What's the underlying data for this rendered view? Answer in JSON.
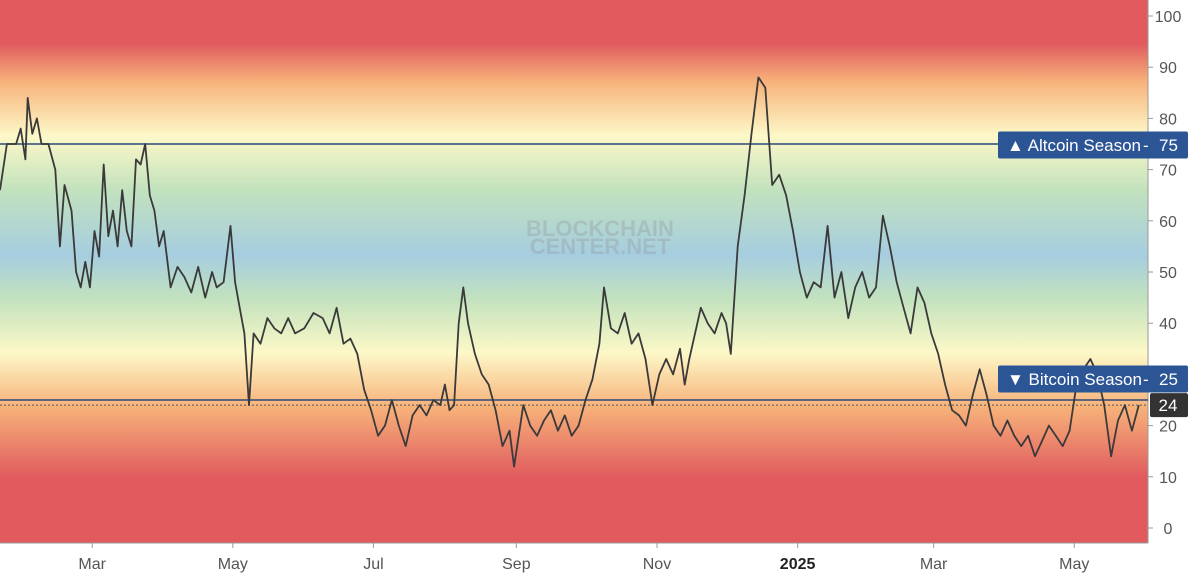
{
  "watermark": {
    "line1": "BLOCKCHAIN",
    "line2": "CENTER.NET"
  },
  "markers": {
    "altcoin_label": "▲ Altcoin Season",
    "altcoin_value": "75",
    "bitcoin_label": "▼ Bitcoin Season",
    "bitcoin_value": "25",
    "current_value": "24"
  },
  "colors": {
    "line": "#3a3a3a",
    "threshold_line": "#2c4a78",
    "label_bg": "#2c5596",
    "current_bg": "#333333",
    "band_red": "#e05a5e",
    "band_orange": "#f7b27a",
    "band_yellow": "#fdf8c8",
    "band_green": "#c2e2be",
    "band_blue": "#a6cde0"
  },
  "chart_data": {
    "type": "line",
    "title": "",
    "xlabel": "",
    "ylabel": "",
    "ylim": [
      0,
      100
    ],
    "y_ticks": [
      "0",
      "10",
      "20",
      "30",
      "40",
      "50",
      "60",
      "70",
      "80",
      "90",
      "100"
    ],
    "x_ticks": [
      {
        "label": "Mar",
        "bold": false
      },
      {
        "label": "May",
        "bold": false
      },
      {
        "label": "Jul",
        "bold": false
      },
      {
        "label": "Sep",
        "bold": false
      },
      {
        "label": "Nov",
        "bold": false
      },
      {
        "label": "2025",
        "bold": true
      },
      {
        "label": "Mar",
        "bold": false
      },
      {
        "label": "May",
        "bold": false
      }
    ],
    "x_tick_dates": [
      "2024-03-01",
      "2024-05-01",
      "2024-07-01",
      "2024-09-01",
      "2024-11-01",
      "2025-01-01",
      "2025-03-01",
      "2025-05-01"
    ],
    "x_range": [
      "2024-01-21",
      "2025-06-02"
    ],
    "thresholds": [
      75,
      25
    ],
    "current": 24,
    "grid": false,
    "legend": "none",
    "series": [
      {
        "points": [
          [
            "2024-01-21",
            66
          ],
          [
            "2024-01-24",
            75
          ],
          [
            "2024-01-28",
            75
          ],
          [
            "2024-01-30",
            78
          ],
          [
            "2024-02-01",
            72
          ],
          [
            "2024-02-02",
            84
          ],
          [
            "2024-02-04",
            77
          ],
          [
            "2024-02-06",
            80
          ],
          [
            "2024-02-08",
            75
          ],
          [
            "2024-02-11",
            75
          ],
          [
            "2024-02-14",
            70
          ],
          [
            "2024-02-16",
            55
          ],
          [
            "2024-02-18",
            67
          ],
          [
            "2024-02-21",
            62
          ],
          [
            "2024-02-23",
            50
          ],
          [
            "2024-02-25",
            47
          ],
          [
            "2024-02-27",
            52
          ],
          [
            "2024-02-29",
            47
          ],
          [
            "2024-03-02",
            58
          ],
          [
            "2024-03-04",
            53
          ],
          [
            "2024-03-06",
            71
          ],
          [
            "2024-03-08",
            57
          ],
          [
            "2024-03-10",
            62
          ],
          [
            "2024-03-12",
            55
          ],
          [
            "2024-03-14",
            66
          ],
          [
            "2024-03-16",
            58
          ],
          [
            "2024-03-18",
            55
          ],
          [
            "2024-03-20",
            72
          ],
          [
            "2024-03-22",
            71
          ],
          [
            "2024-03-24",
            75
          ],
          [
            "2024-03-26",
            65
          ],
          [
            "2024-03-28",
            62
          ],
          [
            "2024-03-30",
            55
          ],
          [
            "2024-04-01",
            58
          ],
          [
            "2024-04-04",
            47
          ],
          [
            "2024-04-07",
            51
          ],
          [
            "2024-04-10",
            49
          ],
          [
            "2024-04-13",
            46
          ],
          [
            "2024-04-16",
            51
          ],
          [
            "2024-04-19",
            45
          ],
          [
            "2024-04-22",
            50
          ],
          [
            "2024-04-24",
            47
          ],
          [
            "2024-04-27",
            48
          ],
          [
            "2024-04-30",
            59
          ],
          [
            "2024-05-02",
            48
          ],
          [
            "2024-05-04",
            43
          ],
          [
            "2024-05-06",
            38
          ],
          [
            "2024-05-08",
            24
          ],
          [
            "2024-05-10",
            38
          ],
          [
            "2024-05-13",
            36
          ],
          [
            "2024-05-16",
            41
          ],
          [
            "2024-05-19",
            39
          ],
          [
            "2024-05-22",
            38
          ],
          [
            "2024-05-25",
            41
          ],
          [
            "2024-05-28",
            38
          ],
          [
            "2024-06-01",
            39
          ],
          [
            "2024-06-05",
            42
          ],
          [
            "2024-06-09",
            41
          ],
          [
            "2024-06-12",
            38
          ],
          [
            "2024-06-15",
            43
          ],
          [
            "2024-06-18",
            36
          ],
          [
            "2024-06-21",
            37
          ],
          [
            "2024-06-24",
            34
          ],
          [
            "2024-06-27",
            27
          ],
          [
            "2024-06-30",
            23
          ],
          [
            "2024-07-03",
            18
          ],
          [
            "2024-07-06",
            20
          ],
          [
            "2024-07-09",
            25
          ],
          [
            "2024-07-12",
            20
          ],
          [
            "2024-07-15",
            16
          ],
          [
            "2024-07-18",
            22
          ],
          [
            "2024-07-21",
            24
          ],
          [
            "2024-07-24",
            22
          ],
          [
            "2024-07-27",
            25
          ],
          [
            "2024-07-30",
            24
          ],
          [
            "2024-08-01",
            28
          ],
          [
            "2024-08-03",
            23
          ],
          [
            "2024-08-05",
            24
          ],
          [
            "2024-08-07",
            40
          ],
          [
            "2024-08-09",
            47
          ],
          [
            "2024-08-11",
            40
          ],
          [
            "2024-08-14",
            34
          ],
          [
            "2024-08-17",
            30
          ],
          [
            "2024-08-20",
            28
          ],
          [
            "2024-08-23",
            23
          ],
          [
            "2024-08-26",
            16
          ],
          [
            "2024-08-29",
            19
          ],
          [
            "2024-08-31",
            12
          ],
          [
            "2024-09-02",
            18
          ],
          [
            "2024-09-04",
            24
          ],
          [
            "2024-09-07",
            20
          ],
          [
            "2024-09-10",
            18
          ],
          [
            "2024-09-13",
            21
          ],
          [
            "2024-09-16",
            23
          ],
          [
            "2024-09-19",
            19
          ],
          [
            "2024-09-22",
            22
          ],
          [
            "2024-09-25",
            18
          ],
          [
            "2024-09-28",
            20
          ],
          [
            "2024-10-01",
            25
          ],
          [
            "2024-10-04",
            29
          ],
          [
            "2024-10-07",
            36
          ],
          [
            "2024-10-09",
            47
          ],
          [
            "2024-10-12",
            39
          ],
          [
            "2024-10-15",
            38
          ],
          [
            "2024-10-18",
            42
          ],
          [
            "2024-10-21",
            36
          ],
          [
            "2024-10-24",
            38
          ],
          [
            "2024-10-27",
            33
          ],
          [
            "2024-10-30",
            24
          ],
          [
            "2024-11-02",
            30
          ],
          [
            "2024-11-05",
            33
          ],
          [
            "2024-11-08",
            30
          ],
          [
            "2024-11-11",
            35
          ],
          [
            "2024-11-13",
            28
          ],
          [
            "2024-11-15",
            33
          ],
          [
            "2024-11-18",
            39
          ],
          [
            "2024-11-20",
            43
          ],
          [
            "2024-11-23",
            40
          ],
          [
            "2024-11-26",
            38
          ],
          [
            "2024-11-29",
            42
          ],
          [
            "2024-12-01",
            40
          ],
          [
            "2024-12-03",
            34
          ],
          [
            "2024-12-06",
            55
          ],
          [
            "2024-12-09",
            65
          ],
          [
            "2024-12-12",
            77
          ],
          [
            "2024-12-15",
            88
          ],
          [
            "2024-12-18",
            86
          ],
          [
            "2024-12-21",
            67
          ],
          [
            "2024-12-24",
            69
          ],
          [
            "2024-12-27",
            65
          ],
          [
            "2024-12-30",
            58
          ],
          [
            "2025-01-02",
            50
          ],
          [
            "2025-01-05",
            45
          ],
          [
            "2025-01-08",
            48
          ],
          [
            "2025-01-11",
            47
          ],
          [
            "2025-01-14",
            59
          ],
          [
            "2025-01-17",
            45
          ],
          [
            "2025-01-20",
            50
          ],
          [
            "2025-01-23",
            41
          ],
          [
            "2025-01-26",
            47
          ],
          [
            "2025-01-29",
            50
          ],
          [
            "2025-02-01",
            45
          ],
          [
            "2025-02-04",
            47
          ],
          [
            "2025-02-07",
            61
          ],
          [
            "2025-02-10",
            55
          ],
          [
            "2025-02-13",
            48
          ],
          [
            "2025-02-16",
            43
          ],
          [
            "2025-02-19",
            38
          ],
          [
            "2025-02-22",
            47
          ],
          [
            "2025-02-25",
            44
          ],
          [
            "2025-02-28",
            38
          ],
          [
            "2025-03-03",
            34
          ],
          [
            "2025-03-06",
            28
          ],
          [
            "2025-03-09",
            23
          ],
          [
            "2025-03-12",
            22
          ],
          [
            "2025-03-15",
            20
          ],
          [
            "2025-03-18",
            26
          ],
          [
            "2025-03-21",
            31
          ],
          [
            "2025-03-24",
            26
          ],
          [
            "2025-03-27",
            20
          ],
          [
            "2025-03-30",
            18
          ],
          [
            "2025-04-02",
            21
          ],
          [
            "2025-04-05",
            18
          ],
          [
            "2025-04-08",
            16
          ],
          [
            "2025-04-11",
            18
          ],
          [
            "2025-04-14",
            14
          ],
          [
            "2025-04-17",
            17
          ],
          [
            "2025-04-20",
            20
          ],
          [
            "2025-04-23",
            18
          ],
          [
            "2025-04-26",
            16
          ],
          [
            "2025-04-29",
            19
          ],
          [
            "2025-05-02",
            28
          ],
          [
            "2025-05-05",
            31
          ],
          [
            "2025-05-08",
            33
          ],
          [
            "2025-05-11",
            30
          ],
          [
            "2025-05-14",
            24
          ],
          [
            "2025-05-17",
            14
          ],
          [
            "2025-05-20",
            21
          ],
          [
            "2025-05-23",
            24
          ],
          [
            "2025-05-26",
            19
          ],
          [
            "2025-05-29",
            24
          ]
        ]
      }
    ]
  }
}
